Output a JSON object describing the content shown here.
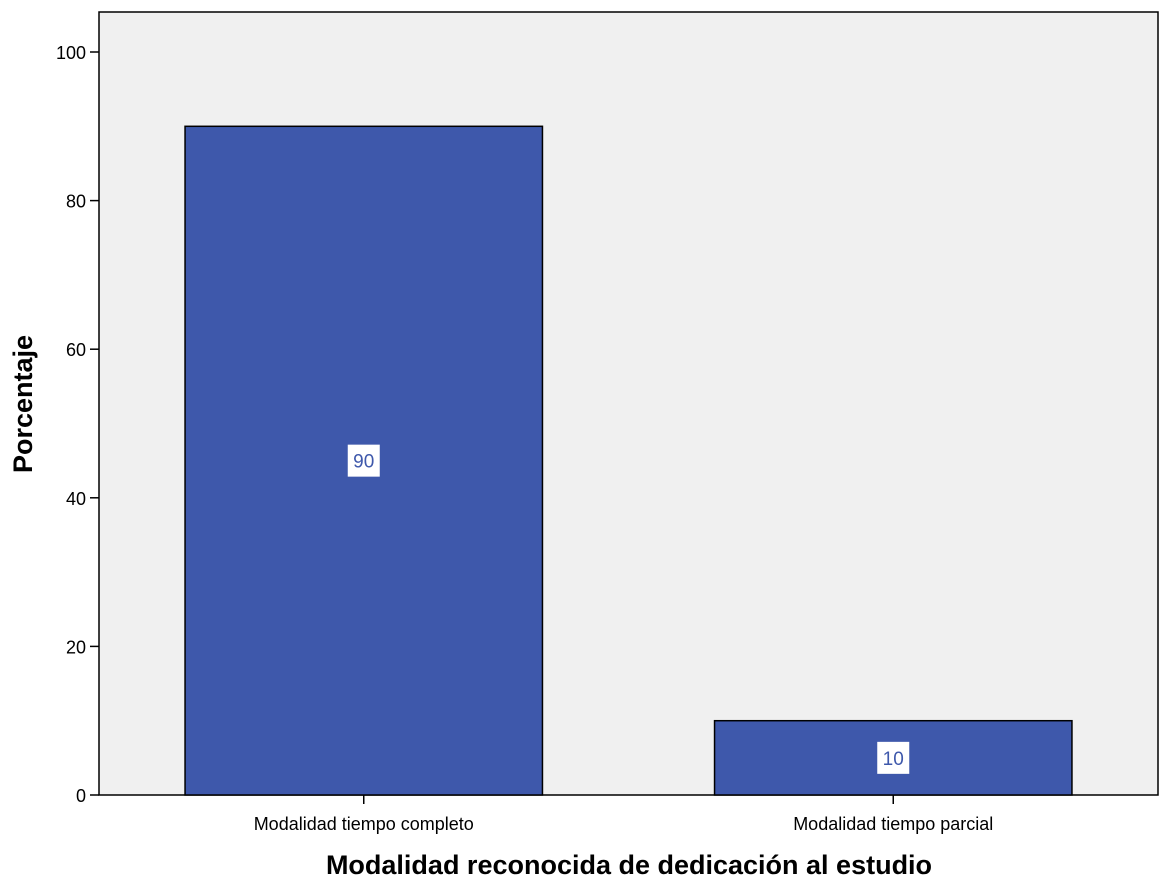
{
  "chart_data": {
    "type": "bar",
    "categories": [
      "Modalidad tiempo completo",
      "Modalidad tiempo parcial"
    ],
    "values": [
      90,
      10
    ],
    "data_labels": [
      "90",
      "10"
    ],
    "xlabel": "Modalidad reconocida de dedicación al estudio",
    "ylabel": "Porcentaje",
    "ylim": [
      0,
      100
    ],
    "yticks": [
      0,
      20,
      40,
      60,
      80,
      100
    ],
    "ytick_labels": [
      "0",
      "20",
      "40",
      "60",
      "80",
      "100"
    ],
    "grid": false,
    "legend": "none",
    "colors": {
      "bar": "#3e58ab",
      "bar_edge": "#000000",
      "plot_background": "#f0f0f0",
      "data_label_text": "#3e58ab",
      "data_label_box": "#ffffff"
    }
  }
}
